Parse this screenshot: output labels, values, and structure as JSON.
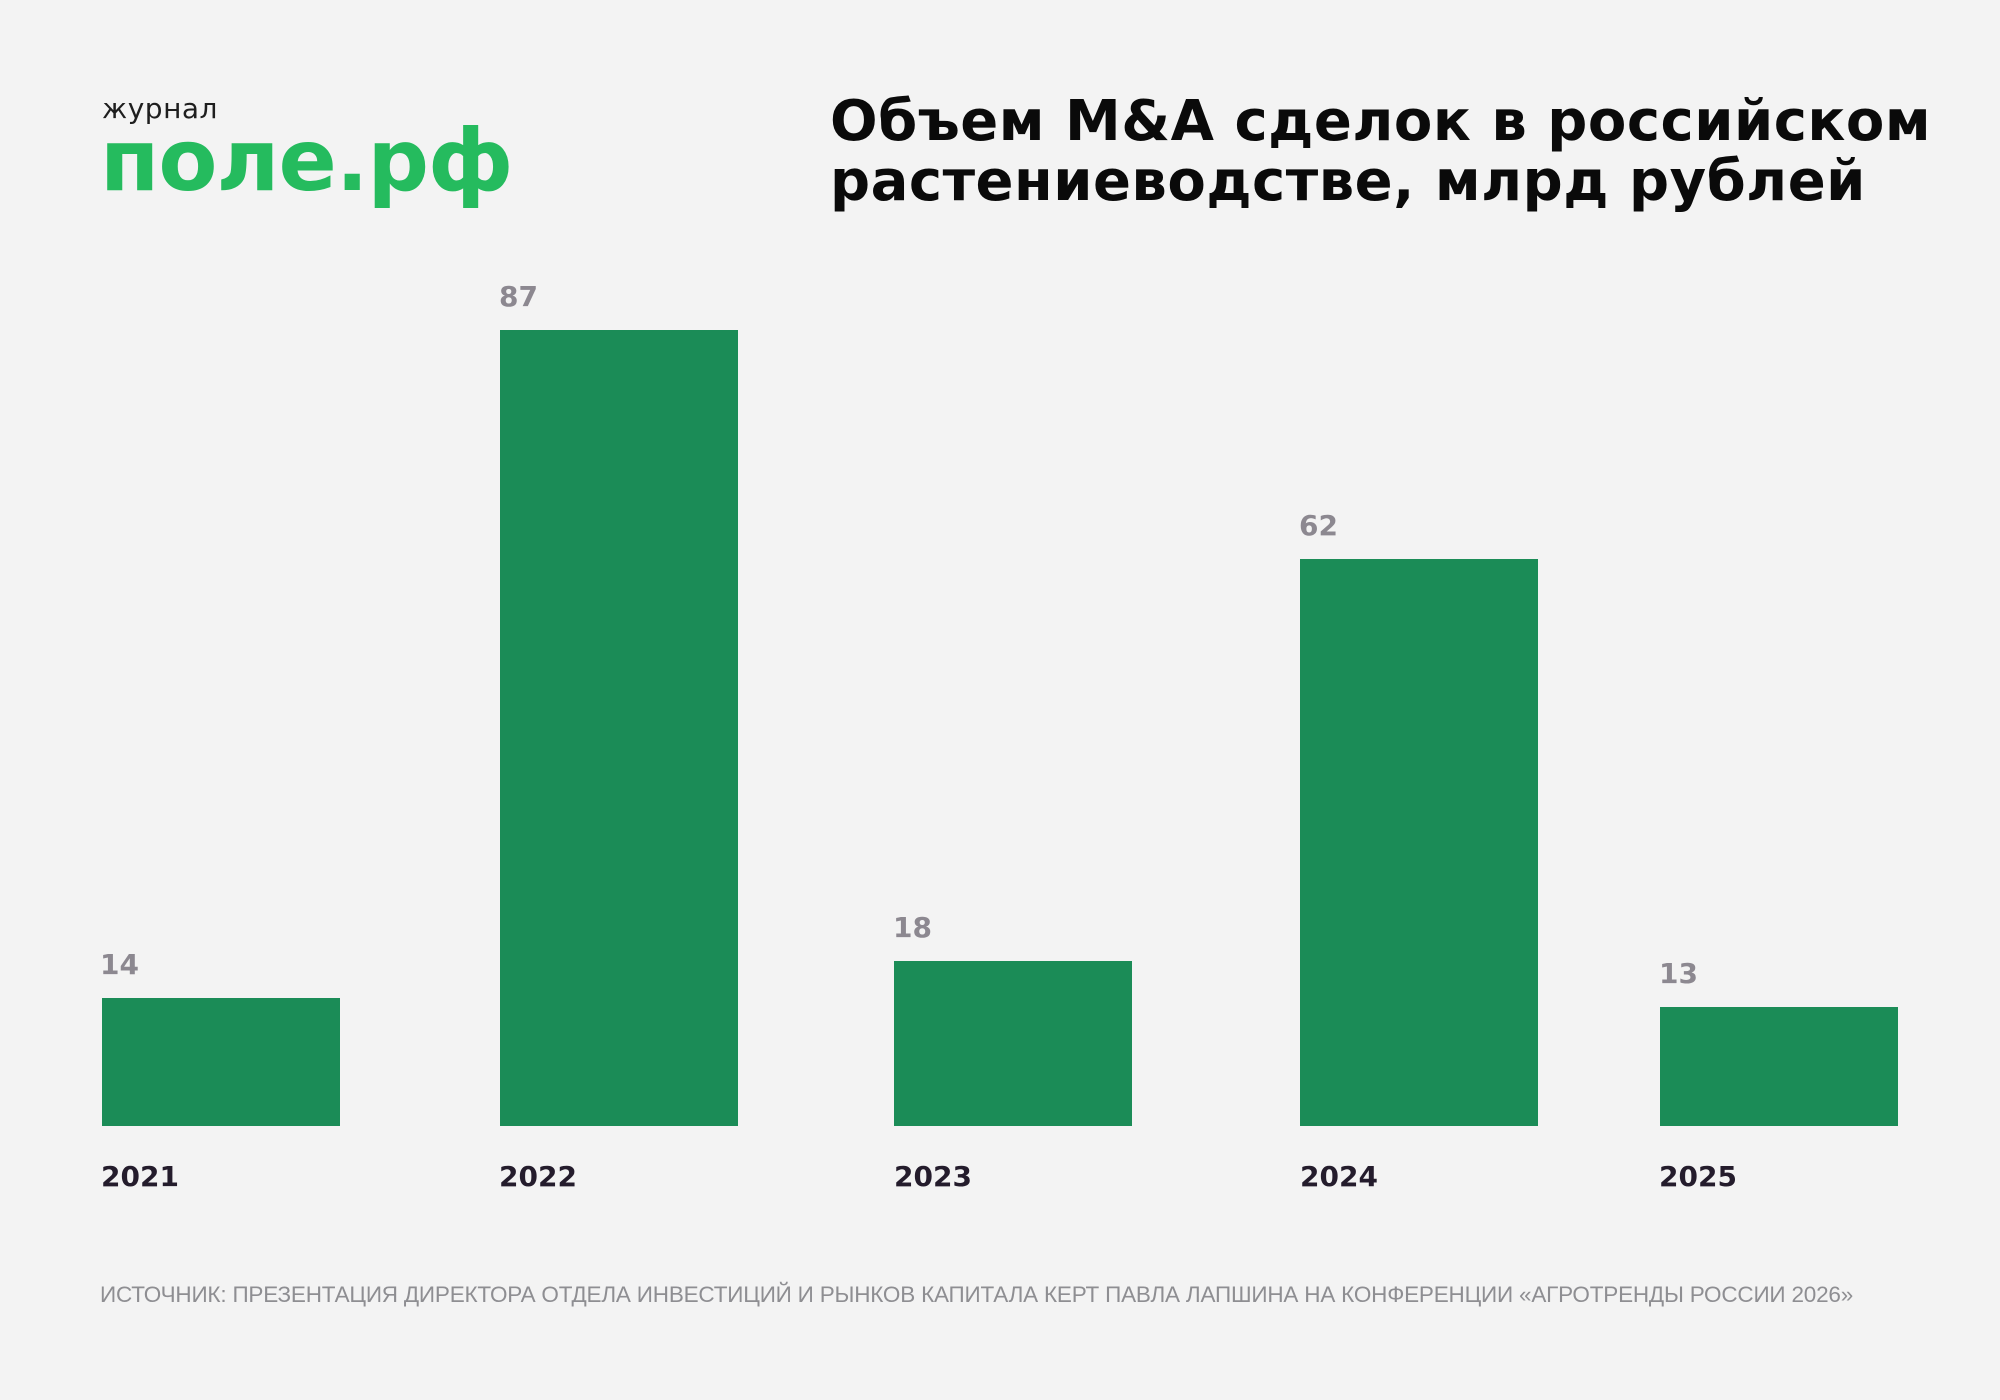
{
  "logo": {
    "small_text": "журнал",
    "big_text": "поле.рф",
    "color": "#25bb5e"
  },
  "title": {
    "line1": "Объем M&A сделок в российском",
    "line2": "растениеводстве, млрд рублей"
  },
  "source": "ИСТОЧНИК: ПРЕЗЕНТАЦИЯ ДИРЕКТОРА ОТДЕЛА ИНВЕСТИЦИЙ И РЫНКОВ КАПИТАЛА КЕРТ ПАВЛА ЛАПШИНА НА КОНФЕРЕНЦИИ «АГРОТРЕНДЫ РОССИИ 2026»",
  "colors": {
    "background": "#f3f3f3",
    "bar": "#1b8c57",
    "value_label": "#8c8890",
    "year_label": "#241c2c"
  },
  "chart_data": {
    "type": "bar",
    "title": "Объем M&A сделок в российском растениеводстве, млрд рублей",
    "categories": [
      "2021",
      "2022",
      "2023",
      "2024",
      "2025"
    ],
    "values": [
      14,
      87,
      18,
      62,
      13
    ],
    "labels": [
      "14",
      "87",
      "18",
      "62",
      "13"
    ],
    "xlabel": "",
    "ylabel": "млрд рублей",
    "ylim": [
      0,
      87
    ],
    "grid": false,
    "legend": null,
    "data_labels": true
  }
}
